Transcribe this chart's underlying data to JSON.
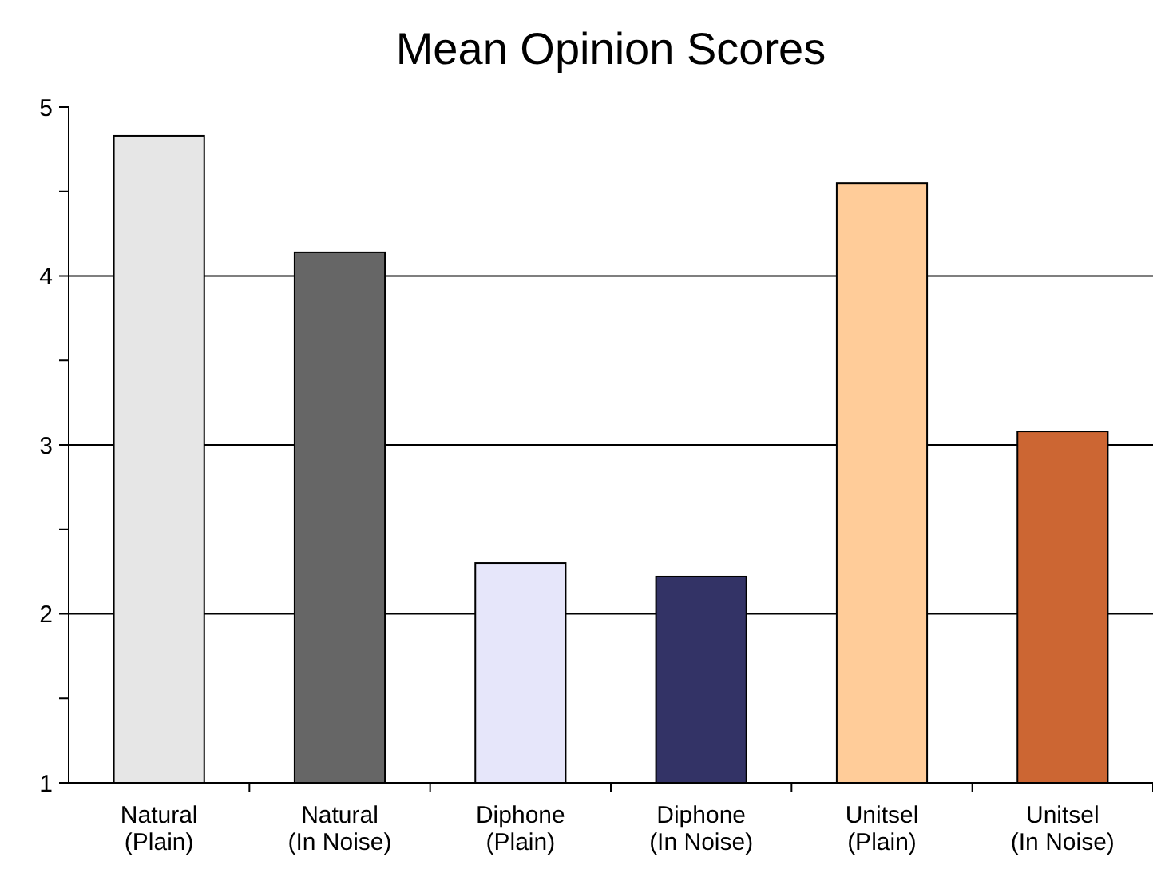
{
  "chart_data": {
    "type": "bar",
    "title": "Mean Opinion Scores",
    "categories": [
      "Natural\n(Plain)",
      "Natural\n(In Noise)",
      "Diphone\n(Plain)",
      "Diphone\n(In Noise)",
      "Unitsel\n(Plain)",
      "Unitsel\n(In Noise)"
    ],
    "values": [
      4.83,
      4.14,
      2.3,
      2.22,
      4.55,
      3.08
    ],
    "colors": [
      "#e6e6e6",
      "#666666",
      "#e6e6fa",
      "#333366",
      "#ffcc99",
      "#cc6633"
    ],
    "ylim": [
      1,
      5
    ],
    "yticks": [
      1,
      {
        "value": 1.5,
        "label": null
      },
      2,
      {
        "value": 2.5,
        "label": null
      },
      3,
      {
        "value": 3.5,
        "label": null
      },
      4,
      {
        "value": 4.5,
        "label": null
      },
      5
    ],
    "grid": "y"
  }
}
